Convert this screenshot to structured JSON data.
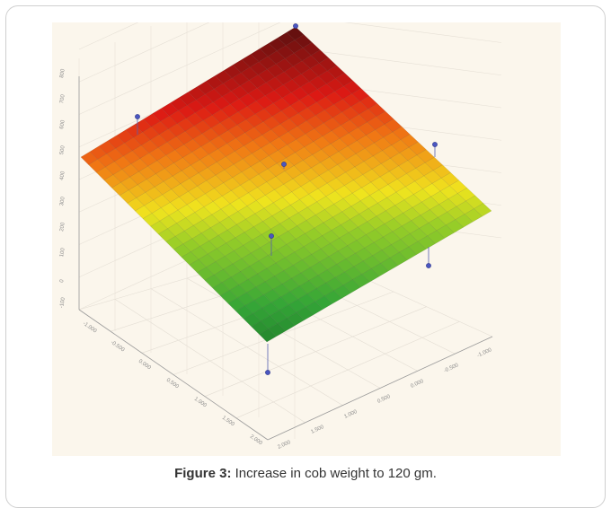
{
  "caption": {
    "label": "Figure 3:",
    "text": "Increase in cob weight to 120 gm."
  },
  "chart_data": {
    "type": "surface3d",
    "description_colors": {
      "high": "#5a0f0f",
      "mid_high": "#e01a14",
      "mid": "#f2e41c",
      "mid_low": "#3fb63a",
      "low": "#0f5a20"
    },
    "panel_background": "#fbf6ec",
    "grid": true,
    "z_ticks": [
      "800",
      "700",
      "600",
      "500",
      "400",
      "300",
      "200",
      "100",
      "0",
      "-100"
    ],
    "x_ticks": [
      "-1.000",
      "-0.500",
      "0.000",
      "0.500",
      "1.000",
      "1.500",
      "2.000"
    ],
    "y_ticks": [
      "2.000",
      "1.500",
      "1.000",
      "0.500",
      "0.000",
      "-0.500",
      "-1.000"
    ],
    "z_range": [
      -100,
      800
    ],
    "surface_corners_z": {
      "back": 800,
      "left": 560,
      "right": 340,
      "front": 30
    },
    "design_points": [
      {
        "label": "corner-top",
        "z": 800
      },
      {
        "label": "upper-left",
        "z": 610
      },
      {
        "label": "center-upper",
        "z": 540
      },
      {
        "label": "right-upper",
        "z": 470
      },
      {
        "label": "center-lower",
        "z": 310
      },
      {
        "label": "right-lower",
        "z": 170
      },
      {
        "label": "bottom",
        "z": -60
      }
    ]
  }
}
